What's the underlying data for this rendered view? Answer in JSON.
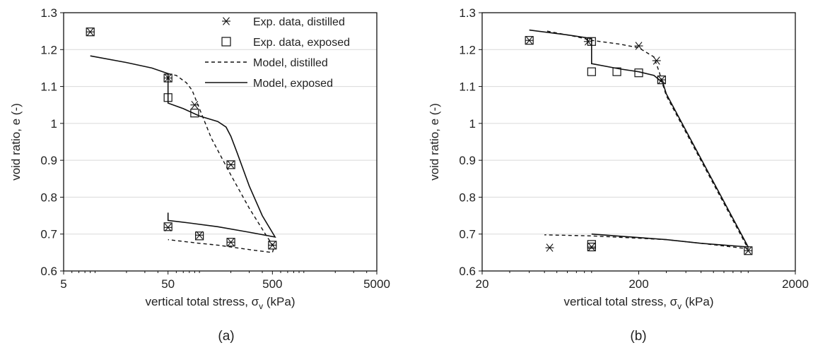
{
  "chart_data": [
    {
      "type": "line",
      "panel_label": "(a)",
      "xlabel": "vertical total stress, σ",
      "xlabel_sub": "v",
      "xlabel_unit": " (kPa)",
      "ylabel": "void ratio, e (-)",
      "xscale": "log",
      "xlim": [
        5,
        5000
      ],
      "ylim": [
        0.6,
        1.3
      ],
      "xticks": [
        5,
        50,
        500,
        5000
      ],
      "yticks": [
        "0.6",
        "0.7",
        "0.8",
        "0.9",
        "1",
        "1.1",
        "1.2",
        "1.3"
      ],
      "grid": false,
      "legend_position": "top-right",
      "series": [
        {
          "name": "Exp. data, distilled",
          "style": "asterisk",
          "points": [
            [
              9,
              1.248
            ],
            [
              50,
              1.123
            ],
            [
              90,
              1.05
            ],
            [
              200,
              0.888
            ],
            [
              500,
              0.67
            ],
            [
              200,
              0.678
            ],
            [
              100,
              0.697
            ],
            [
              50,
              0.718
            ]
          ]
        },
        {
          "name": "Exp. data, exposed",
          "style": "square",
          "points": [
            [
              9,
              1.248
            ],
            [
              50,
              1.123
            ],
            [
              50,
              1.07
            ],
            [
              90,
              1.028
            ],
            [
              200,
              0.888
            ],
            [
              500,
              0.67
            ],
            [
              200,
              0.678
            ],
            [
              100,
              0.695
            ],
            [
              50,
              0.72
            ]
          ]
        },
        {
          "name": "Model, distilled",
          "style": "dashed",
          "points": [
            [
              50,
              1.135
            ],
            [
              60,
              1.13
            ],
            [
              75,
              1.11
            ],
            [
              85,
              1.09
            ],
            [
              100,
              1.04
            ],
            [
              130,
              0.96
            ],
            [
              200,
              0.86
            ],
            [
              300,
              0.77
            ],
            [
              450,
              0.69
            ],
            [
              520,
              0.665
            ],
            [
              500,
              0.65
            ],
            [
              300,
              0.658
            ],
            [
              150,
              0.67
            ],
            [
              100,
              0.675
            ],
            [
              50,
              0.685
            ]
          ]
        },
        {
          "name": "Model, exposed",
          "style": "solid",
          "points": [
            [
              9,
              1.183
            ],
            [
              20,
              1.165
            ],
            [
              35,
              1.15
            ],
            [
              50,
              1.135
            ],
            [
              50,
              1.055
            ],
            [
              70,
              1.04
            ],
            [
              100,
              1.02
            ],
            [
              150,
              1.005
            ],
            [
              180,
              0.99
            ],
            [
              200,
              0.965
            ],
            [
              230,
              0.92
            ],
            [
              300,
              0.83
            ],
            [
              400,
              0.75
            ],
            [
              530,
              0.692
            ],
            [
              300,
              0.705
            ],
            [
              150,
              0.72
            ],
            [
              80,
              0.73
            ],
            [
              50,
              0.737
            ],
            [
              50,
              0.758
            ]
          ]
        }
      ]
    },
    {
      "type": "line",
      "panel_label": "(b)",
      "xlabel": "vertical total stress, σ",
      "xlabel_sub": "v",
      "xlabel_unit": " (kPa)",
      "ylabel": "void ratio, e (-)",
      "xscale": "log",
      "xlim": [
        20,
        2000
      ],
      "ylim": [
        0.6,
        1.3
      ],
      "xticks": [
        20,
        200,
        2000
      ],
      "yticks": [
        "0.6",
        "0.7",
        "0.8",
        "0.9",
        "1",
        "1.1",
        "1.2",
        "1.3"
      ],
      "grid": false,
      "series": [
        {
          "name": "Exp. data, distilled",
          "style": "asterisk",
          "points": [
            [
              40,
              1.225
            ],
            [
              95,
              1.222
            ],
            [
              200,
              1.21
            ],
            [
              260,
              1.17
            ],
            [
              280,
              1.118
            ],
            [
              1000,
              0.655
            ],
            [
              100,
              0.665
            ],
            [
              54,
              0.663
            ]
          ]
        },
        {
          "name": "Exp. data, exposed",
          "style": "square",
          "points": [
            [
              40,
              1.225
            ],
            [
              100,
              1.222
            ],
            [
              100,
              1.14
            ],
            [
              145,
              1.14
            ],
            [
              200,
              1.137
            ],
            [
              280,
              1.118
            ],
            [
              1000,
              0.655
            ],
            [
              100,
              0.665
            ],
            [
              100,
              0.672
            ]
          ]
        },
        {
          "name": "Model, distilled",
          "style": "dashed",
          "points": [
            [
              52,
              1.25
            ],
            [
              80,
              1.235
            ],
            [
              100,
              1.225
            ],
            [
              150,
              1.215
            ],
            [
              200,
              1.205
            ],
            [
              250,
              1.18
            ],
            [
              270,
              1.14
            ],
            [
              285,
              1.105
            ],
            [
              300,
              1.075
            ],
            [
              1000,
              0.66
            ],
            [
              500,
              0.675
            ],
            [
              300,
              0.685
            ],
            [
              100,
              0.695
            ],
            [
              50,
              0.698
            ]
          ]
        },
        {
          "name": "Model, exposed",
          "style": "solid",
          "points": [
            [
              40,
              1.253
            ],
            [
              70,
              1.24
            ],
            [
              100,
              1.23
            ],
            [
              100,
              1.162
            ],
            [
              150,
              1.148
            ],
            [
              200,
              1.14
            ],
            [
              250,
              1.13
            ],
            [
              285,
              1.11
            ],
            [
              300,
              1.08
            ],
            [
              1000,
              0.665
            ],
            [
              500,
              0.675
            ],
            [
              300,
              0.685
            ],
            [
              100,
              0.7
            ]
          ]
        }
      ]
    }
  ]
}
